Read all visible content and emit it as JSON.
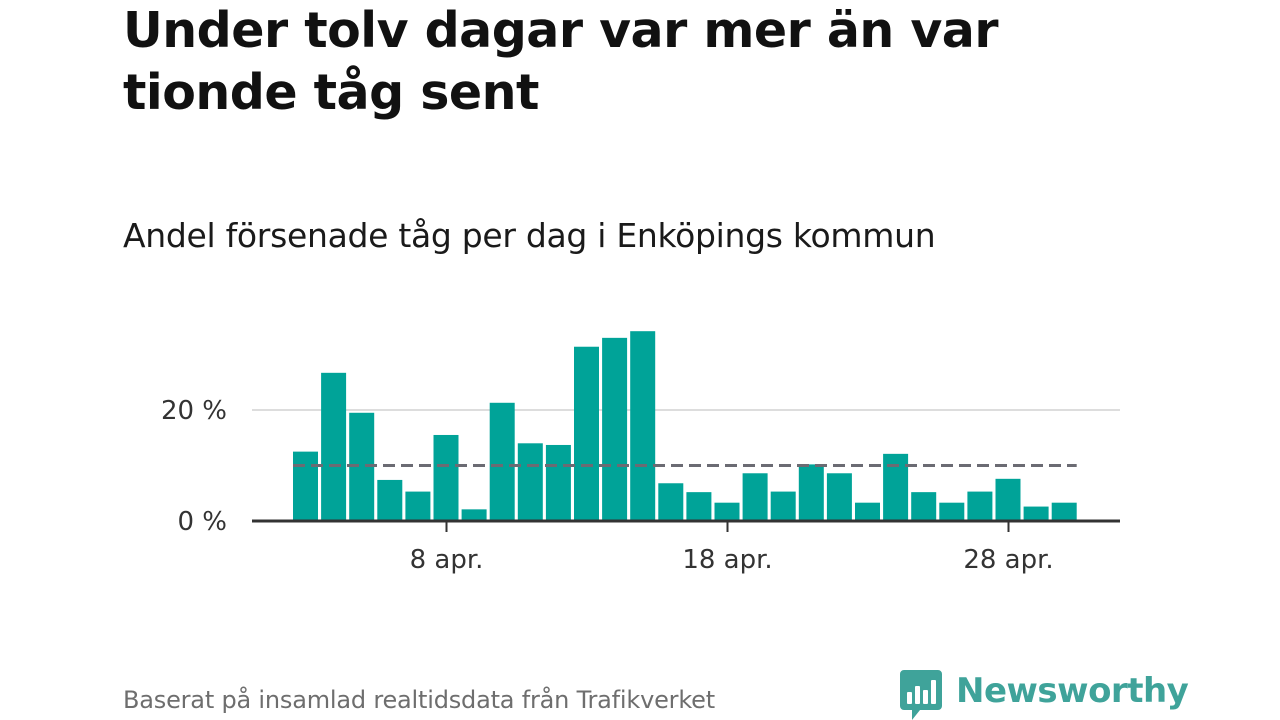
{
  "title": "Under tolv dagar var mer än var tionde tåg sent",
  "subtitle": "Andel försenade tåg per dag i Enköpings kommun",
  "source": "Baserat på insamlad realtidsdata från Trafikverket",
  "brand": {
    "name": "Newsworthy",
    "icon": "newsworthy-logo-icon",
    "color": "#3fa39a"
  },
  "colors": {
    "bar": "#00a398",
    "reference_line": "#6b6b73",
    "gridline": "#dddddd",
    "axis": "#333333"
  },
  "chart_data": {
    "type": "bar",
    "x_unit": "day of April",
    "x": [
      3,
      4,
      5,
      6,
      7,
      8,
      9,
      10,
      11,
      12,
      13,
      14,
      15,
      16,
      17,
      18,
      19,
      20,
      21,
      22,
      23,
      24,
      25,
      26,
      27,
      28,
      29,
      30
    ],
    "values": [
      12.5,
      26.7,
      19.5,
      7.4,
      5.3,
      15.5,
      2.1,
      21.3,
      14.0,
      13.7,
      31.4,
      33.0,
      34.2,
      6.8,
      5.2,
      3.3,
      8.6,
      5.3,
      10.2,
      8.6,
      3.3,
      12.1,
      5.2,
      3.3,
      5.3,
      7.6,
      2.6,
      3.3
    ],
    "reference_line": {
      "value": 10,
      "style": "dashed"
    },
    "ylim": [
      0,
      36
    ],
    "y_ticks": [
      {
        "value": 0,
        "label": "0 %"
      },
      {
        "value": 20,
        "label": "20 %"
      }
    ],
    "x_ticks": [
      {
        "value": 8,
        "label": "8 apr."
      },
      {
        "value": 18,
        "label": "18 apr."
      },
      {
        "value": 28,
        "label": "28 apr."
      }
    ],
    "grid": true,
    "legend": "none"
  }
}
